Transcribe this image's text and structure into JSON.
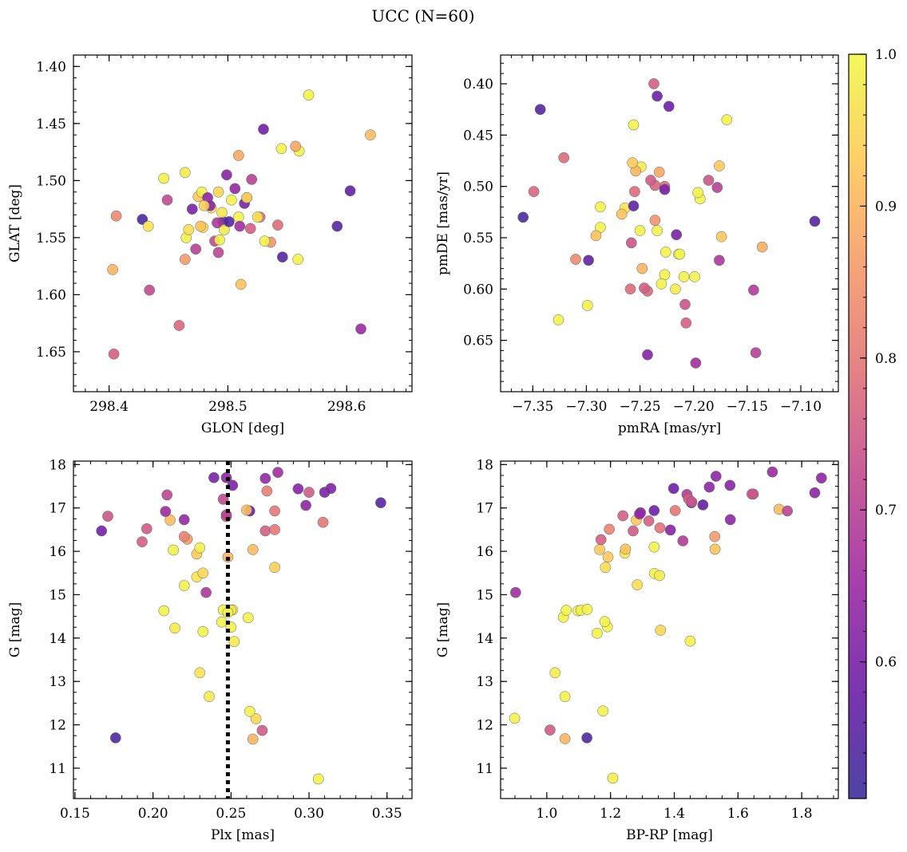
{
  "figure": {
    "title": "UCC (N=60)"
  },
  "colorbar": {
    "min": 0.51,
    "max": 1.0,
    "ticks": [
      0.6,
      0.7,
      0.8,
      0.9,
      1.0
    ],
    "tick_labels": [
      "0.6",
      "0.7",
      "0.8",
      "0.9",
      "1.0"
    ],
    "colormap": "plasma",
    "colors": [
      "#3b2f9a",
      "#6b1fa6",
      "#9b2aa3",
      "#c14a8f",
      "#e07379",
      "#f59a6a",
      "#fdc95a",
      "#f0f94a"
    ]
  },
  "chart_data": [
    {
      "type": "scatter",
      "name": "glon-glat",
      "xlabel": "GLON [deg]",
      "ylabel": "GLAT [deg]",
      "xlim": [
        298.37,
        298.655
      ],
      "ylim": [
        1.39,
        1.685
      ],
      "xticks": [
        298.4,
        298.5,
        298.6
      ],
      "xtick_labels": [
        "298.4",
        "298.5",
        "298.6"
      ],
      "yticks": [
        1.4,
        1.45,
        1.5,
        1.55,
        1.6,
        1.65
      ],
      "ytick_labels": [
        "1.40",
        "1.45",
        "1.50",
        "1.55",
        "1.60",
        "1.65"
      ],
      "x": [
        298.404,
        298.459,
        298.434,
        298.612,
        298.403,
        298.511,
        298.464,
        298.428,
        298.406,
        298.433,
        298.446,
        298.464,
        298.465,
        298.479,
        298.486,
        298.496,
        298.514,
        298.527,
        298.536,
        298.546,
        298.559,
        298.475,
        298.509,
        298.492,
        298.467,
        298.519,
        298.525,
        298.497,
        298.509,
        298.478,
        298.52,
        298.56,
        298.568,
        298.542,
        298.557,
        298.592,
        298.603,
        298.62,
        298.53,
        298.492,
        298.516,
        298.483,
        298.491,
        298.485,
        298.489,
        298.501,
        298.506,
        298.51,
        298.499,
        298.473,
        298.477,
        298.449,
        298.48,
        298.495,
        298.503,
        298.531,
        298.545,
        298.516,
        298.493,
        298.47
      ],
      "y": [
        1.652,
        1.627,
        1.596,
        1.63,
        1.578,
        1.591,
        1.569,
        1.534,
        1.531,
        1.54,
        1.498,
        1.493,
        1.55,
        1.541,
        1.524,
        1.536,
        1.52,
        1.532,
        1.554,
        1.567,
        1.569,
        1.514,
        1.478,
        1.563,
        1.543,
        1.542,
        1.532,
        1.543,
        1.532,
        1.51,
        1.499,
        1.474,
        1.425,
        1.539,
        1.47,
        1.54,
        1.509,
        1.46,
        1.455,
        1.51,
        1.515,
        1.515,
        1.537,
        1.522,
        1.553,
        1.536,
        1.507,
        1.54,
        1.495,
        1.56,
        1.54,
        1.517,
        1.522,
        1.528,
        1.517,
        1.553,
        1.472,
        1.515,
        1.552,
        1.525
      ],
      "c": [
        0.76,
        0.77,
        0.72,
        0.65,
        0.9,
        0.92,
        0.86,
        0.53,
        0.83,
        0.97,
        0.99,
        0.98,
        0.99,
        0.96,
        0.95,
        0.56,
        0.6,
        0.78,
        0.85,
        0.55,
        0.99,
        0.93,
        0.88,
        0.71,
        0.96,
        0.76,
        0.97,
        0.98,
        0.99,
        0.99,
        0.7,
        0.99,
        0.99,
        0.78,
        0.88,
        0.55,
        0.57,
        0.91,
        0.58,
        0.95,
        0.74,
        0.63,
        0.68,
        0.62,
        0.72,
        0.55,
        0.64,
        0.66,
        0.62,
        0.7,
        0.92,
        0.72,
        0.94,
        0.97,
        0.99,
        0.99,
        0.99,
        0.95,
        0.99,
        0.6
      ]
    },
    {
      "type": "scatter",
      "name": "pmra-pmde",
      "xlabel": "pmRA [mas/yr]",
      "ylabel": "pmDE [mas/yr]",
      "xlim": [
        -7.38,
        -7.065
      ],
      "ylim": [
        0.372,
        0.7
      ],
      "xticks": [
        -7.35,
        -7.3,
        -7.25,
        -7.2,
        -7.15,
        -7.1
      ],
      "xtick_labels": [
        "−7.35",
        "−7.30",
        "−7.25",
        "−7.20",
        "−7.15",
        "−7.10"
      ],
      "yticks": [
        0.4,
        0.45,
        0.5,
        0.55,
        0.6,
        0.65
      ],
      "ytick_labels": [
        "0.40",
        "0.45",
        "0.50",
        "0.55",
        "0.60",
        "0.65"
      ],
      "x": [
        -7.198,
        -7.243,
        -7.142,
        -7.326,
        -7.207,
        -7.144,
        -7.298,
        -7.359,
        -7.087,
        -7.176,
        -7.299,
        -7.31,
        -7.259,
        -7.243,
        -7.246,
        -7.217,
        -7.214,
        -7.208,
        -7.226,
        -7.227,
        -7.216,
        -7.199,
        -7.174,
        -7.178,
        -7.194,
        -7.209,
        -7.213,
        -7.23,
        -7.234,
        -7.236,
        -7.258,
        -7.25,
        -7.264,
        -7.267,
        -7.256,
        -7.287,
        -7.291,
        -7.287,
        -7.255,
        -7.249,
        -7.227,
        -7.223,
        -7.227,
        -7.254,
        -7.236,
        -7.24,
        -7.256,
        -7.232,
        -7.237,
        -7.257,
        -7.248,
        -7.196,
        -7.186,
        -7.176,
        -7.136,
        -7.169,
        -7.321,
        -7.349,
        -7.343,
        -7.234
      ],
      "y": [
        0.672,
        0.664,
        0.662,
        0.63,
        0.633,
        0.601,
        0.572,
        0.53,
        0.534,
        0.572,
        0.616,
        0.571,
        0.6,
        0.602,
        0.599,
        0.6,
        0.566,
        0.615,
        0.564,
        0.586,
        0.547,
        0.588,
        0.549,
        0.501,
        0.512,
        0.588,
        0.566,
        0.595,
        0.543,
        0.533,
        0.555,
        0.543,
        0.521,
        0.527,
        0.519,
        0.54,
        0.548,
        0.52,
        0.505,
        0.481,
        0.5,
        0.422,
        0.503,
        0.485,
        0.499,
        0.494,
        0.44,
        0.486,
        0.4,
        0.477,
        0.58,
        0.506,
        0.494,
        0.48,
        0.559,
        0.435,
        0.472,
        0.505,
        0.425,
        0.412
      ],
      "c": [
        0.66,
        0.62,
        0.7,
        0.99,
        0.76,
        0.69,
        0.57,
        0.53,
        0.55,
        0.68,
        0.99,
        0.83,
        0.78,
        0.77,
        0.76,
        0.98,
        0.99,
        0.74,
        0.99,
        0.99,
        0.6,
        0.99,
        0.93,
        0.7,
        0.99,
        0.99,
        0.99,
        0.99,
        0.99,
        0.85,
        0.74,
        0.99,
        0.97,
        0.92,
        0.56,
        0.99,
        0.92,
        0.99,
        0.78,
        0.98,
        0.78,
        0.58,
        0.6,
        0.9,
        0.77,
        0.75,
        0.99,
        0.88,
        0.76,
        0.93,
        0.9,
        0.99,
        0.74,
        0.93,
        0.89,
        0.99,
        0.78,
        0.77,
        0.55,
        0.58
      ]
    },
    {
      "type": "scatter",
      "name": "plx-g",
      "xlabel": "Plx [mas]",
      "ylabel": "G [mag]",
      "xlim": [
        0.149,
        0.366
      ],
      "ylim": [
        18.08,
        10.3
      ],
      "xticks": [
        0.15,
        0.2,
        0.25,
        0.3,
        0.35
      ],
      "xtick_labels": [
        "0.15",
        "0.20",
        "0.25",
        "0.30",
        "0.35"
      ],
      "yticks": [
        11,
        12,
        13,
        14,
        15,
        16,
        17,
        18
      ],
      "ytick_labels": [
        "11",
        "12",
        "13",
        "14",
        "15",
        "16",
        "17",
        "18"
      ],
      "vline": 0.248,
      "x": [
        0.306,
        0.176,
        0.264,
        0.27,
        0.266,
        0.262,
        0.236,
        0.23,
        0.252,
        0.232,
        0.214,
        0.244,
        0.25,
        0.261,
        0.207,
        0.251,
        0.234,
        0.22,
        0.228,
        0.232,
        0.278,
        0.228,
        0.23,
        0.213,
        0.248,
        0.264,
        0.222,
        0.22,
        0.211,
        0.193,
        0.196,
        0.167,
        0.171,
        0.208,
        0.22,
        0.247,
        0.262,
        0.272,
        0.278,
        0.278,
        0.309,
        0.298,
        0.3,
        0.31,
        0.314,
        0.293,
        0.346,
        0.273,
        0.272,
        0.28,
        0.245,
        0.251,
        0.247,
        0.239,
        0.209,
        0.25,
        0.26,
        0.245,
        0.247,
        0.248
      ],
      "y": [
        10.75,
        11.7,
        11.67,
        11.87,
        12.14,
        12.31,
        12.65,
        13.2,
        13.92,
        14.15,
        14.23,
        14.37,
        14.25,
        14.47,
        14.63,
        14.65,
        15.05,
        15.21,
        15.41,
        15.5,
        15.63,
        15.94,
        16.08,
        16.03,
        15.87,
        16.04,
        16.28,
        16.34,
        16.72,
        16.22,
        16.52,
        16.47,
        16.81,
        16.92,
        16.73,
        16.8,
        16.93,
        16.47,
        16.5,
        16.93,
        16.67,
        17.06,
        17.36,
        17.36,
        17.45,
        17.44,
        17.12,
        17.39,
        17.68,
        17.82,
        17.2,
        17.52,
        17.7,
        17.7,
        17.3,
        14.64,
        16.95,
        14.65,
        16.84,
        14.59
      ],
      "c": [
        0.99,
        0.54,
        0.9,
        0.75,
        0.95,
        0.99,
        0.98,
        0.97,
        0.98,
        0.99,
        0.98,
        0.99,
        0.99,
        0.99,
        0.99,
        0.99,
        0.68,
        0.99,
        0.97,
        0.95,
        0.94,
        0.93,
        0.99,
        0.99,
        0.9,
        0.91,
        0.86,
        0.82,
        0.91,
        0.76,
        0.75,
        0.59,
        0.74,
        0.65,
        0.64,
        0.78,
        0.58,
        0.76,
        0.8,
        0.8,
        0.8,
        0.63,
        0.75,
        0.6,
        0.61,
        0.62,
        0.55,
        0.81,
        0.64,
        0.66,
        0.72,
        0.6,
        0.63,
        0.6,
        0.71,
        0.97,
        0.91,
        0.99,
        0.7,
        0.99
      ]
    },
    {
      "type": "scatter",
      "name": "bprp-g",
      "xlabel": "BP-RP [mag]",
      "ylabel": "G [mag]",
      "xlim": [
        0.855,
        1.915
      ],
      "ylim": [
        18.08,
        10.3
      ],
      "xticks": [
        1.0,
        1.2,
        1.4,
        1.6,
        1.8
      ],
      "xtick_labels": [
        "1.0",
        "1.2",
        "1.4",
        "1.6",
        "1.8"
      ],
      "yticks": [
        11,
        12,
        13,
        14,
        15,
        16,
        17,
        18
      ],
      "ytick_labels": [
        "11",
        "12",
        "13",
        "14",
        "15",
        "16",
        "17",
        "18"
      ],
      "x": [
        1.207,
        1.01,
        1.057,
        1.126,
        0.899,
        1.176,
        1.057,
        1.026,
        1.45,
        1.158,
        1.19,
        1.182,
        1.052,
        1.061,
        1.098,
        1.107,
        1.127,
        0.902,
        1.357,
        1.338,
        1.284,
        1.184,
        1.245,
        1.192,
        1.166,
        1.247,
        1.337,
        1.528,
        1.527,
        1.427,
        1.354,
        1.17,
        1.196,
        1.729,
        1.271,
        1.281,
        1.239,
        1.32,
        1.355,
        1.294,
        1.388,
        1.403,
        1.337,
        1.291,
        1.576,
        1.755,
        1.454,
        1.44,
        1.445,
        1.49,
        1.455,
        1.51,
        1.531,
        1.575,
        1.648,
        1.644,
        1.841,
        1.862,
        1.708,
        1.398
      ],
      "y": [
        10.77,
        11.88,
        11.68,
        11.7,
        12.15,
        12.32,
        12.65,
        13.2,
        13.93,
        14.11,
        14.26,
        14.38,
        14.48,
        14.64,
        14.63,
        14.64,
        14.66,
        15.05,
        14.18,
        15.49,
        15.23,
        15.63,
        15.96,
        15.87,
        16.04,
        16.05,
        16.1,
        16.05,
        16.34,
        16.24,
        15.44,
        16.27,
        16.51,
        16.97,
        16.47,
        16.72,
        16.82,
        16.7,
        16.54,
        16.89,
        16.49,
        16.94,
        16.94,
        16.86,
        16.73,
        16.93,
        17.12,
        17.31,
        17.21,
        17.07,
        17.14,
        17.48,
        17.73,
        17.52,
        17.32,
        17.32,
        17.35,
        17.69,
        17.83,
        17.45
      ],
      "c": [
        0.99,
        0.75,
        0.9,
        0.54,
        0.99,
        0.99,
        0.99,
        0.98,
        0.99,
        0.99,
        0.99,
        0.99,
        0.99,
        0.99,
        0.99,
        0.99,
        0.99,
        0.66,
        0.95,
        0.99,
        0.96,
        0.96,
        0.98,
        0.93,
        0.93,
        0.92,
        0.99,
        0.92,
        0.86,
        0.69,
        0.98,
        0.76,
        0.82,
        0.91,
        0.75,
        0.93,
        0.76,
        0.76,
        0.79,
        0.61,
        0.62,
        0.8,
        0.58,
        0.64,
        0.63,
        0.71,
        0.56,
        0.69,
        0.75,
        0.57,
        0.74,
        0.63,
        0.63,
        0.62,
        0.75,
        0.74,
        0.63,
        0.63,
        0.65,
        0.58
      ]
    }
  ]
}
